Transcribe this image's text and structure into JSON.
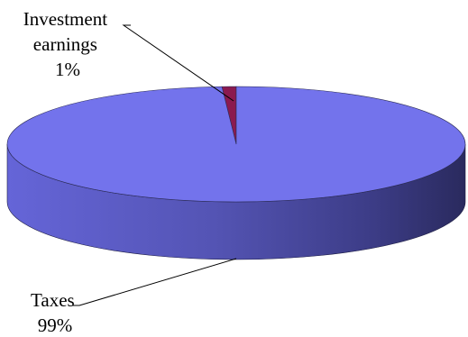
{
  "chart_data": {
    "type": "pie",
    "style": "3d",
    "title": "",
    "slices": [
      {
        "label": "Investment earnings",
        "label_lines": [
          "Investment",
          "earnings"
        ],
        "percent_label": "1%",
        "value": 1,
        "color": "#8B1A4F"
      },
      {
        "label": "Taxes",
        "label_lines": [
          "Taxes"
        ],
        "percent_label": "99%",
        "value": 99,
        "color": "#7373EC"
      }
    ],
    "legend": "none",
    "leader_lines": true
  }
}
